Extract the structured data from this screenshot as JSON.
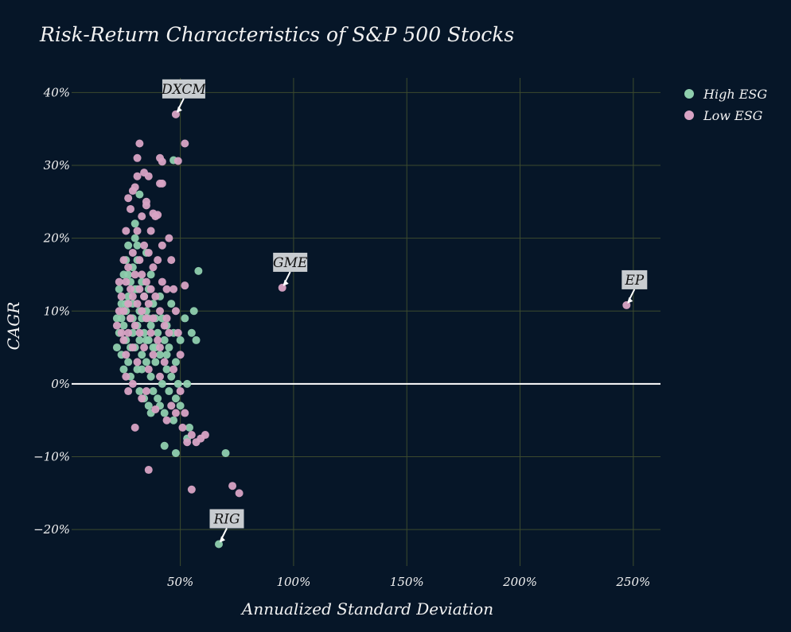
{
  "chart_data": {
    "type": "scatter",
    "title": "Risk-Return Characteristics of S&P 500 Stocks",
    "xlabel": "Annualized Standard Deviation",
    "ylabel": "CAGR",
    "xlim": [
      0.02,
      2.62
    ],
    "ylim": [
      -0.25,
      0.42
    ],
    "xticks": [
      0.5,
      1.0,
      1.5,
      2.0,
      2.5
    ],
    "xtick_labels": [
      "50%",
      "100%",
      "150%",
      "200%",
      "250%"
    ],
    "yticks": [
      -0.2,
      -0.1,
      0.0,
      0.1,
      0.2,
      0.3,
      0.4
    ],
    "ytick_labels": [
      "−20%",
      "−10%",
      "0%",
      "10%",
      "20%",
      "30%",
      "40%"
    ],
    "grid": true,
    "zero_line": true,
    "legend_position": "top-right",
    "series": [
      {
        "name": "High ESG",
        "color": "#8fcfae",
        "points": [
          [
            0.22,
            0.09
          ],
          [
            0.22,
            0.05
          ],
          [
            0.23,
            0.13
          ],
          [
            0.23,
            0.07
          ],
          [
            0.24,
            0.11
          ],
          [
            0.24,
            0.04
          ],
          [
            0.25,
            0.15
          ],
          [
            0.25,
            0.08
          ],
          [
            0.25,
            0.02
          ],
          [
            0.26,
            0.17
          ],
          [
            0.26,
            0.1
          ],
          [
            0.26,
            0.06
          ],
          [
            0.27,
            0.12
          ],
          [
            0.27,
            0.03
          ],
          [
            0.27,
            0.19
          ],
          [
            0.28,
            0.09
          ],
          [
            0.28,
            0.14
          ],
          [
            0.28,
            0.01
          ],
          [
            0.29,
            0.07
          ],
          [
            0.29,
            0.16
          ],
          [
            0.29,
            0.11
          ],
          [
            0.3,
            0.05
          ],
          [
            0.3,
            0.2
          ],
          [
            0.3,
            0.13
          ],
          [
            0.31,
            0.08
          ],
          [
            0.31,
            0.02
          ],
          [
            0.31,
            0.17
          ],
          [
            0.32,
            0.1
          ],
          [
            0.32,
            0.06
          ],
          [
            0.32,
            -0.01
          ],
          [
            0.33,
            0.14
          ],
          [
            0.33,
            0.09
          ],
          [
            0.33,
            0.04
          ],
          [
            0.34,
            0.12
          ],
          [
            0.34,
            0.07
          ],
          [
            0.34,
            -0.02
          ],
          [
            0.35,
            0.18
          ],
          [
            0.35,
            0.03
          ],
          [
            0.35,
            0.1
          ],
          [
            0.36,
            0.06
          ],
          [
            0.36,
            -0.03
          ],
          [
            0.36,
            0.13
          ],
          [
            0.37,
            0.08
          ],
          [
            0.37,
            0.01
          ],
          [
            0.37,
            0.15
          ],
          [
            0.38,
            0.05
          ],
          [
            0.38,
            -0.01
          ],
          [
            0.38,
            0.11
          ],
          [
            0.39,
            0.09
          ],
          [
            0.39,
            0.03
          ],
          [
            0.4,
            0.07
          ],
          [
            0.4,
            -0.02
          ],
          [
            0.41,
            0.12
          ],
          [
            0.41,
            0.04
          ],
          [
            0.42,
            0.0
          ],
          [
            0.42,
            0.09
          ],
          [
            0.43,
            0.06
          ],
          [
            0.43,
            -0.04
          ],
          [
            0.44,
            0.02
          ],
          [
            0.44,
            0.08
          ],
          [
            0.45,
            -0.01
          ],
          [
            0.45,
            0.05
          ],
          [
            0.46,
            0.11
          ],
          [
            0.46,
            0.01
          ],
          [
            0.47,
            -0.05
          ],
          [
            0.47,
            0.07
          ],
          [
            0.48,
            0.03
          ],
          [
            0.48,
            -0.02
          ],
          [
            0.49,
            0.0
          ],
          [
            0.5,
            0.06
          ],
          [
            0.5,
            -0.03
          ],
          [
            0.52,
            0.09
          ],
          [
            0.53,
            0.0
          ],
          [
            0.54,
            -0.06
          ],
          [
            0.55,
            0.07
          ],
          [
            0.56,
            0.1
          ],
          [
            0.57,
            0.06
          ],
          [
            0.58,
            0.155
          ],
          [
            0.32,
            0.26
          ],
          [
            0.3,
            0.22
          ],
          [
            0.47,
            0.307
          ],
          [
            0.43,
            -0.085
          ],
          [
            0.48,
            -0.095
          ],
          [
            0.53,
            -0.075
          ],
          [
            0.7,
            -0.095
          ],
          [
            0.67,
            -0.22
          ],
          [
            0.26,
            0.11
          ],
          [
            0.28,
            0.05
          ],
          [
            0.31,
            0.13
          ],
          [
            0.33,
            0.02
          ],
          [
            0.35,
            0.06
          ],
          [
            0.37,
            -0.04
          ],
          [
            0.39,
            0.05
          ],
          [
            0.41,
            -0.03
          ],
          [
            0.44,
            0.04
          ],
          [
            0.29,
            0.09
          ],
          [
            0.27,
            0.15
          ],
          [
            0.24,
            0.09
          ],
          [
            0.31,
            0.19
          ],
          [
            0.36,
            0.09
          ]
        ]
      },
      {
        "name": "Low ESG",
        "color": "#d8a3c4",
        "points": [
          [
            0.23,
            0.1
          ],
          [
            0.23,
            0.14
          ],
          [
            0.24,
            0.07
          ],
          [
            0.24,
            0.12
          ],
          [
            0.25,
            0.17
          ],
          [
            0.25,
            0.06
          ],
          [
            0.25,
            0.1
          ],
          [
            0.26,
            0.14
          ],
          [
            0.26,
            0.04
          ],
          [
            0.26,
            0.21
          ],
          [
            0.27,
            0.11
          ],
          [
            0.27,
            0.16
          ],
          [
            0.27,
            0.07
          ],
          [
            0.28,
            0.24
          ],
          [
            0.28,
            0.13
          ],
          [
            0.28,
            0.09
          ],
          [
            0.29,
            0.18
          ],
          [
            0.29,
            0.05
          ],
          [
            0.29,
            0.12
          ],
          [
            0.3,
            0.27
          ],
          [
            0.3,
            0.15
          ],
          [
            0.3,
            0.08
          ],
          [
            0.31,
            0.21
          ],
          [
            0.31,
            0.11
          ],
          [
            0.31,
            0.03
          ],
          [
            0.32,
            0.17
          ],
          [
            0.32,
            0.13
          ],
          [
            0.32,
            0.07
          ],
          [
            0.33,
            0.23
          ],
          [
            0.33,
            0.1
          ],
          [
            0.33,
            0.15
          ],
          [
            0.34,
            0.05
          ],
          [
            0.34,
            0.19
          ],
          [
            0.34,
            0.12
          ],
          [
            0.35,
            0.09
          ],
          [
            0.35,
            0.25
          ],
          [
            0.35,
            0.14
          ],
          [
            0.36,
            0.02
          ],
          [
            0.36,
            0.18
          ],
          [
            0.36,
            0.11
          ],
          [
            0.37,
            0.07
          ],
          [
            0.37,
            0.21
          ],
          [
            0.37,
            0.13
          ],
          [
            0.38,
            0.04
          ],
          [
            0.38,
            0.16
          ],
          [
            0.38,
            0.09
          ],
          [
            0.39,
            0.12
          ],
          [
            0.39,
            0.23
          ],
          [
            0.4,
            0.06
          ],
          [
            0.4,
            0.17
          ],
          [
            0.41,
            0.1
          ],
          [
            0.41,
            0.01
          ],
          [
            0.42,
            0.14
          ],
          [
            0.42,
            0.19
          ],
          [
            0.43,
            0.08
          ],
          [
            0.43,
            0.03
          ],
          [
            0.44,
            0.13
          ],
          [
            0.44,
            -0.05
          ],
          [
            0.45,
            0.2
          ],
          [
            0.45,
            0.07
          ],
          [
            0.46,
            0.17
          ],
          [
            0.46,
            -0.03
          ],
          [
            0.47,
            0.13
          ],
          [
            0.47,
            0.02
          ],
          [
            0.48,
            0.1
          ],
          [
            0.48,
            -0.04
          ],
          [
            0.49,
            0.07
          ],
          [
            0.5,
            -0.01
          ],
          [
            0.5,
            0.04
          ],
          [
            0.51,
            -0.06
          ],
          [
            0.52,
            0.135
          ],
          [
            0.52,
            -0.04
          ],
          [
            0.53,
            -0.08
          ],
          [
            0.55,
            -0.07
          ],
          [
            0.57,
            -0.08
          ],
          [
            0.59,
            -0.075
          ],
          [
            0.61,
            -0.07
          ],
          [
            0.55,
            -0.145
          ],
          [
            0.73,
            -0.14
          ],
          [
            0.76,
            -0.15
          ],
          [
            0.36,
            -0.118
          ],
          [
            0.3,
            -0.06
          ],
          [
            0.27,
            -0.01
          ],
          [
            0.33,
            -0.02
          ],
          [
            0.39,
            -0.035
          ],
          [
            0.32,
            0.33
          ],
          [
            0.52,
            0.33
          ],
          [
            0.49,
            0.306
          ],
          [
            0.41,
            0.31
          ],
          [
            0.42,
            0.305
          ],
          [
            0.36,
            0.285
          ],
          [
            0.31,
            0.285
          ],
          [
            0.41,
            0.275
          ],
          [
            0.42,
            0.275
          ],
          [
            0.29,
            0.265
          ],
          [
            0.35,
            0.245
          ],
          [
            0.27,
            0.255
          ],
          [
            0.38,
            0.234
          ],
          [
            0.4,
            0.232
          ],
          [
            0.48,
            0.37
          ],
          [
            0.95,
            0.132
          ],
          [
            2.47,
            0.108
          ],
          [
            0.31,
            0.31
          ],
          [
            0.34,
            0.29
          ],
          [
            0.22,
            0.08
          ],
          [
            0.26,
            0.01
          ],
          [
            0.29,
            0.0
          ],
          [
            0.35,
            -0.01
          ],
          [
            0.41,
            0.05
          ],
          [
            0.44,
            0.09
          ]
        ]
      }
    ],
    "annotations": [
      {
        "text": "DXCM",
        "x": 0.48,
        "y": 0.37
      },
      {
        "text": "GME",
        "x": 0.95,
        "y": 0.132
      },
      {
        "text": "EP",
        "x": 2.47,
        "y": 0.108
      },
      {
        "text": "RIG",
        "x": 0.67,
        "y": -0.22
      }
    ]
  }
}
